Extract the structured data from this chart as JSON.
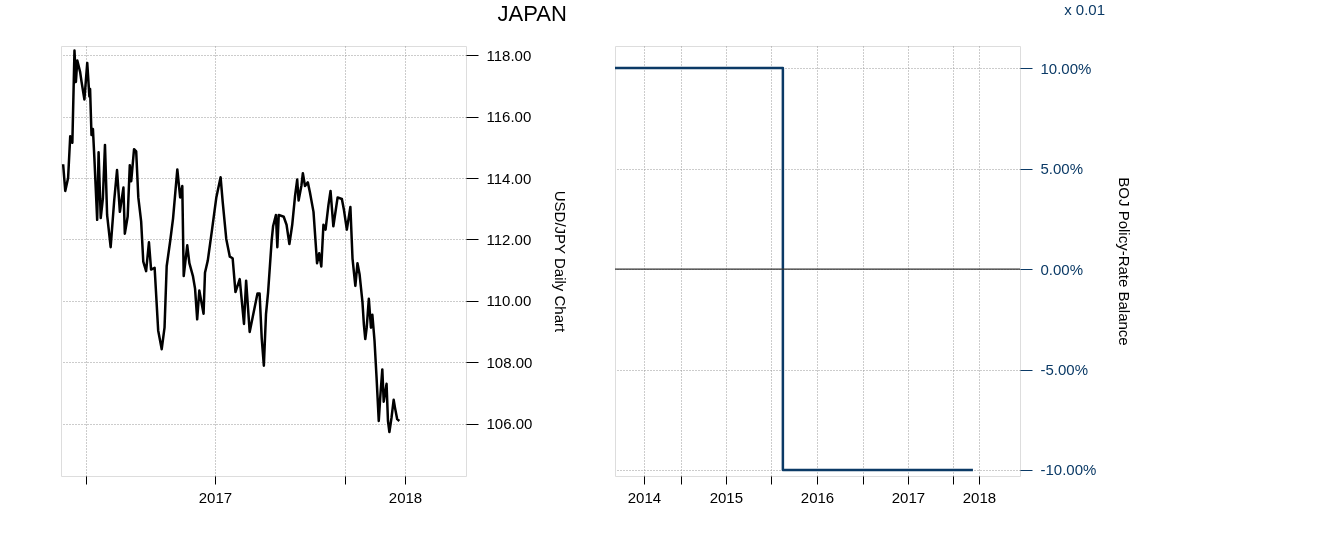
{
  "chart_data": [
    {
      "type": "line",
      "title": "JAPAN",
      "ylabel": "USD/JPY Daily Chart",
      "x": [
        "2016-11-30",
        "2016-12-03",
        "2016-12-07",
        "2016-12-10",
        "2016-12-13",
        "2016-12-16",
        "2016-12-18",
        "2016-12-20",
        "2016-12-24",
        "2016-12-26",
        "2016-12-30",
        "2017-01-03",
        "2017-01-06",
        "2017-01-07",
        "2017-01-09",
        "2017-01-11",
        "2017-01-13",
        "2017-01-17",
        "2017-01-19",
        "2017-01-22",
        "2017-01-25",
        "2017-01-28",
        "2017-01-31",
        "2017-02-05",
        "2017-02-10",
        "2017-02-14",
        "2017-02-18",
        "2017-02-23",
        "2017-02-25",
        "2017-03-01",
        "2017-03-04",
        "2017-03-06",
        "2017-03-10",
        "2017-03-13",
        "2017-03-16",
        "2017-03-20",
        "2017-03-23",
        "2017-03-27",
        "2017-03-31",
        "2017-04-03",
        "2017-04-08",
        "2017-04-13",
        "2017-04-18",
        "2017-04-22",
        "2017-04-25",
        "2017-04-30",
        "2017-05-04",
        "2017-05-10",
        "2017-05-14",
        "2017-05-17",
        "2017-05-19",
        "2017-05-24",
        "2017-05-27",
        "2017-06-01",
        "2017-06-04",
        "2017-06-07",
        "2017-06-10",
        "2017-06-16",
        "2017-06-18",
        "2017-06-22",
        "2017-06-28",
        "2017-07-04",
        "2017-07-10",
        "2017-07-13",
        "2017-07-18",
        "2017-07-23",
        "2017-07-27",
        "2017-07-31",
        "2017-08-06",
        "2017-08-12",
        "2017-08-15",
        "2017-08-20",
        "2017-08-25",
        "2017-08-31",
        "2017-09-03",
        "2017-09-06",
        "2017-09-09",
        "2017-09-12",
        "2017-09-15",
        "2017-09-20",
        "2017-09-22",
        "2017-09-26",
        "2017-09-28",
        "2017-09-30",
        "2017-10-07",
        "2017-10-11",
        "2017-10-15",
        "2017-10-19",
        "2017-10-23",
        "2017-10-26",
        "2017-10-28",
        "2017-11-01",
        "2017-11-03",
        "2017-11-06",
        "2017-11-10",
        "2017-11-13",
        "2017-11-18",
        "2017-11-23",
        "2017-11-26",
        "2017-11-29",
        "2017-12-02",
        "2017-12-05",
        "2017-12-09",
        "2017-12-12",
        "2017-12-16",
        "2017-12-22",
        "2017-12-28",
        "2017-12-31",
        "2018-01-04",
        "2018-01-09",
        "2018-01-12",
        "2018-01-16",
        "2018-01-19",
        "2018-01-22",
        "2018-01-26",
        "2018-01-28",
        "2018-01-30",
        "2018-02-01",
        "2018-02-04",
        "2018-02-07",
        "2018-02-09",
        "2018-02-12",
        "2018-02-15",
        "2018-02-18",
        "2018-02-20",
        "2018-02-23",
        "2018-02-25",
        "2018-03-01",
        "2018-03-03",
        "2018-03-05",
        "2018-03-08",
        "2018-03-11",
        "2018-03-13",
        "2018-03-16",
        "2018-03-19"
      ],
      "series": [
        {
          "color": "#000000",
          "values": [
            114.45,
            113.58,
            114.0,
            115.36,
            115.15,
            118.15,
            117.13,
            117.83,
            117.45,
            117.13,
            116.56,
            117.75,
            116.66,
            116.9,
            115.4,
            115.6,
            114.68,
            112.64,
            114.84,
            112.7,
            113.32,
            115.08,
            112.8,
            111.75,
            113.27,
            114.26,
            112.9,
            113.69,
            112.19,
            112.75,
            114.42,
            113.9,
            114.94,
            114.87,
            113.37,
            112.59,
            111.28,
            110.97,
            111.91,
            111.02,
            111.08,
            109.04,
            108.43,
            109.14,
            111.13,
            111.96,
            112.69,
            114.28,
            113.37,
            113.74,
            110.81,
            111.81,
            111.23,
            110.81,
            110.4,
            109.4,
            110.34,
            109.58,
            110.92,
            111.32,
            112.33,
            113.37,
            114.03,
            113.22,
            112.02,
            111.44,
            111.39,
            110.29,
            110.71,
            109.25,
            110.66,
            108.99,
            109.56,
            110.24,
            110.24,
            108.78,
            107.89,
            109.56,
            110.29,
            111.96,
            112.43,
            112.8,
            111.75,
            112.8,
            112.74,
            112.48,
            111.85,
            112.48,
            113.42,
            113.95,
            113.27,
            113.76,
            114.16,
            113.74,
            113.86,
            113.53,
            112.9,
            111.23,
            111.55,
            111.12,
            112.48,
            112.32,
            113.11,
            113.58,
            112.43,
            113.37,
            113.32,
            112.95,
            112.32,
            113.06,
            111.38,
            110.49,
            111.23,
            110.86,
            109.97,
            109.24,
            108.76,
            109.13,
            110.07,
            109.13,
            109.55,
            108.71,
            107.46,
            106.09,
            106.83,
            107.77,
            106.72,
            107.3,
            106.09,
            105.73,
            106.2,
            106.78,
            106.51,
            106.15,
            106.09
          ]
        }
      ],
      "xlim": [
        "2016-11-27",
        "2018-06-21"
      ],
      "xticks": [
        {
          "value": "2017-01-01",
          "label": null
        },
        {
          "value": "2018-01-01",
          "label": null
        },
        {
          "value": "2017-07-02",
          "label": "2017"
        },
        {
          "value": "2018-03-27",
          "label": "2018"
        }
      ],
      "ylim": [
        104.3,
        118.3
      ],
      "yticks": [
        {
          "value": 106,
          "label": "106.00"
        },
        {
          "value": 108,
          "label": "108.00"
        },
        {
          "value": 110,
          "label": "110.00"
        },
        {
          "value": 112,
          "label": "112.00"
        },
        {
          "value": 114,
          "label": "114.00"
        },
        {
          "value": 116,
          "label": "116.00"
        },
        {
          "value": 118,
          "label": "118.00"
        }
      ],
      "grid": true,
      "legend": false
    },
    {
      "type": "step",
      "ylabel": "BOJ Policy-Rate Balance",
      "annotations": [
        "x 0.01"
      ],
      "x": [
        "2014-04-13",
        "2016-02-16",
        "2018-03-20"
      ],
      "series": [
        {
          "color": "#0b3a66",
          "values": [
            10,
            -10,
            -10
          ]
        }
      ],
      "xlim": [
        "2014-04-13",
        "2018-09-25"
      ],
      "xticks": [
        {
          "value": "2015-01-01",
          "label": null
        },
        {
          "value": "2016-01-01",
          "label": null
        },
        {
          "value": "2017-01-01",
          "label": null
        },
        {
          "value": "2018-01-01",
          "label": null
        },
        {
          "value": "2014-08-07",
          "label": "2014"
        },
        {
          "value": "2015-07-02",
          "label": "2015"
        },
        {
          "value": "2016-07-02",
          "label": "2016"
        },
        {
          "value": "2017-07-02",
          "label": "2017"
        },
        {
          "value": "2018-04-13",
          "label": "2018"
        }
      ],
      "ylim": [
        -10.3,
        11.1
      ],
      "yticks": [
        {
          "value": -10,
          "label": "-10.00%"
        },
        {
          "value": -5,
          "label": "-5.00%"
        },
        {
          "value": 0,
          "label": "0.00%"
        },
        {
          "value": 5,
          "label": "5.00%"
        },
        {
          "value": 10,
          "label": "10.00%"
        }
      ],
      "ref_lines": [
        {
          "axis": "y",
          "value": 0,
          "color": "#333333"
        }
      ],
      "grid": true,
      "legend": false
    }
  ]
}
